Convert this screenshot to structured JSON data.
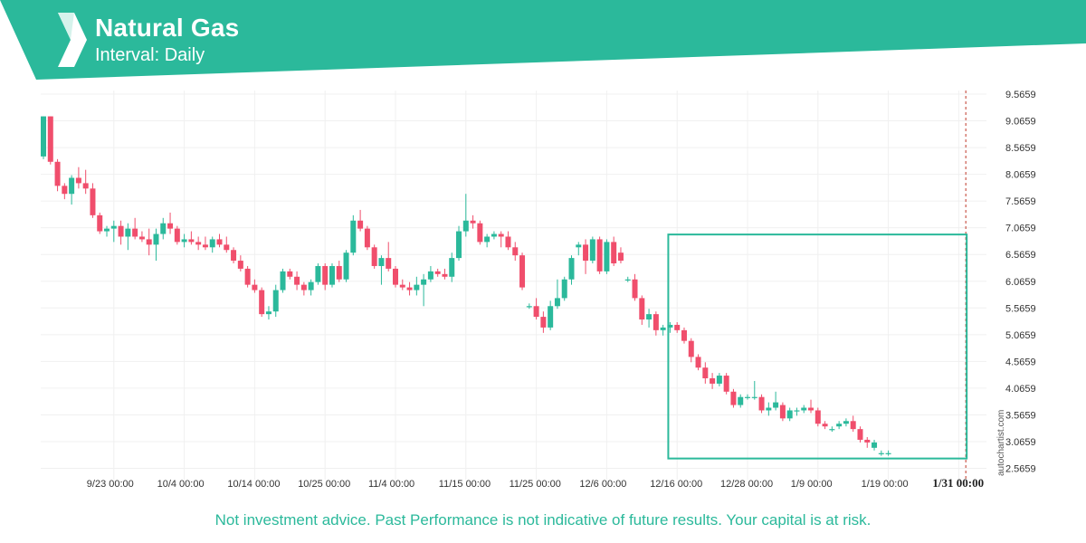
{
  "header": {
    "title": "Natural Gas",
    "subtitle": "Interval: Daily",
    "brand_color": "#2bb99b",
    "logo_icon": "autochartist-logo-icon"
  },
  "footer": {
    "disclaimer": "Not investment advice. Past Performance is not indicative of future results. Your capital is at risk."
  },
  "credit": "autochartist.com",
  "chart_data": {
    "type": "candlestick",
    "title": "Natural Gas",
    "interval": "Daily",
    "y_ticks": [
      "9.5659",
      "9.0659",
      "8.5659",
      "8.0659",
      "7.5659",
      "7.0659",
      "6.5659",
      "6.0659",
      "5.5659",
      "5.0659",
      "4.5659",
      "4.0659",
      "3.5659",
      "3.0659",
      "2.5659"
    ],
    "ylim": [
      2.5659,
      9.5659
    ],
    "x_ticks": [
      "9/23 00:00",
      "10/4 00:00",
      "10/14 00:00",
      "10/25 00:00",
      "11/4 00:00",
      "11/15 00:00",
      "11/25 00:00",
      "12/6 00:00",
      "12/16 00:00",
      "12/28 00:00",
      "1/9 00:00",
      "1/19 00:00",
      "1/31 00:00"
    ],
    "x_tick_bar_index": [
      10,
      20,
      30,
      40,
      50,
      60,
      70,
      80,
      90,
      100,
      110,
      120,
      130
    ],
    "grid": true,
    "colors": {
      "up": "#2bb99b",
      "down": "#f04e6c",
      "pattern": "#2bb99b",
      "axis_text": "#333333"
    },
    "pattern_box": {
      "start_bar": 89,
      "end_bar": 131,
      "top": 6.94,
      "bottom": 2.75
    },
    "marker_bar": 131,
    "ohlc": [
      [
        8.4,
        9.15,
        8.35,
        9.15
      ],
      [
        9.15,
        9.15,
        8.25,
        8.3
      ],
      [
        8.3,
        8.35,
        7.75,
        7.85
      ],
      [
        7.85,
        7.9,
        7.6,
        7.7
      ],
      [
        7.7,
        8.05,
        7.5,
        8.0
      ],
      [
        8.0,
        8.2,
        7.8,
        7.9
      ],
      [
        7.9,
        8.15,
        7.7,
        7.8
      ],
      [
        7.8,
        7.9,
        7.25,
        7.3
      ],
      [
        7.3,
        7.35,
        6.95,
        7.0
      ],
      [
        7.0,
        7.1,
        6.9,
        7.05
      ],
      [
        7.05,
        7.2,
        6.8,
        7.1
      ],
      [
        7.1,
        7.2,
        6.75,
        6.9
      ],
      [
        6.9,
        7.15,
        6.65,
        7.05
      ],
      [
        7.05,
        7.25,
        6.85,
        6.9
      ],
      [
        6.9,
        7.0,
        6.8,
        6.85
      ],
      [
        6.85,
        7.05,
        6.55,
        6.75
      ],
      [
        6.75,
        7.05,
        6.45,
        6.95
      ],
      [
        6.95,
        7.25,
        6.85,
        7.15
      ],
      [
        7.15,
        7.35,
        6.95,
        7.05
      ],
      [
        7.05,
        7.1,
        6.75,
        6.8
      ],
      [
        6.8,
        6.95,
        6.7,
        6.85
      ],
      [
        6.85,
        7.0,
        6.75,
        6.8
      ],
      [
        6.8,
        6.9,
        6.65,
        6.75
      ],
      [
        6.75,
        6.9,
        6.65,
        6.7
      ],
      [
        6.7,
        6.9,
        6.6,
        6.85
      ],
      [
        6.85,
        6.95,
        6.7,
        6.75
      ],
      [
        6.75,
        6.9,
        6.6,
        6.65
      ],
      [
        6.65,
        6.7,
        6.4,
        6.45
      ],
      [
        6.45,
        6.55,
        6.25,
        6.3
      ],
      [
        6.3,
        6.35,
        5.95,
        6.0
      ],
      [
        6.0,
        6.1,
        5.85,
        5.9
      ],
      [
        5.9,
        5.95,
        5.4,
        5.45
      ],
      [
        5.45,
        5.6,
        5.35,
        5.5
      ],
      [
        5.5,
        6.0,
        5.4,
        5.9
      ],
      [
        5.9,
        6.3,
        5.85,
        6.25
      ],
      [
        6.25,
        6.3,
        6.1,
        6.15
      ],
      [
        6.15,
        6.25,
        5.9,
        6.0
      ],
      [
        6.0,
        6.05,
        5.8,
        5.9
      ],
      [
        5.9,
        6.1,
        5.8,
        6.05
      ],
      [
        6.05,
        6.4,
        6.0,
        6.35
      ],
      [
        6.35,
        6.4,
        5.9,
        6.0
      ],
      [
        6.0,
        6.4,
        5.95,
        6.35
      ],
      [
        6.35,
        6.45,
        6.05,
        6.1
      ],
      [
        6.1,
        6.65,
        6.05,
        6.6
      ],
      [
        6.6,
        7.3,
        6.55,
        7.2
      ],
      [
        7.2,
        7.4,
        7.0,
        7.05
      ],
      [
        7.05,
        7.1,
        6.65,
        6.7
      ],
      [
        6.7,
        6.75,
        6.3,
        6.35
      ],
      [
        6.35,
        6.55,
        6.0,
        6.5
      ],
      [
        6.5,
        6.8,
        6.25,
        6.3
      ],
      [
        6.3,
        6.35,
        5.95,
        6.0
      ],
      [
        6.0,
        6.1,
        5.9,
        5.95
      ],
      [
        5.95,
        6.05,
        5.8,
        5.9
      ],
      [
        5.9,
        6.15,
        5.8,
        6.0
      ],
      [
        6.0,
        6.2,
        5.6,
        6.1
      ],
      [
        6.1,
        6.35,
        6.05,
        6.25
      ],
      [
        6.25,
        6.3,
        6.15,
        6.2
      ],
      [
        6.2,
        6.3,
        6.1,
        6.15
      ],
      [
        6.15,
        6.6,
        6.05,
        6.5
      ],
      [
        6.5,
        7.1,
        6.45,
        7.0
      ],
      [
        7.0,
        7.7,
        6.9,
        7.2
      ],
      [
        7.2,
        7.3,
        7.05,
        7.15
      ],
      [
        7.15,
        7.2,
        6.75,
        6.8
      ],
      [
        6.8,
        6.95,
        6.7,
        6.9
      ],
      [
        6.9,
        7.0,
        6.85,
        6.95
      ],
      [
        6.95,
        7.0,
        6.7,
        6.9
      ],
      [
        6.9,
        7.0,
        6.65,
        6.7
      ],
      [
        6.7,
        6.8,
        6.45,
        6.55
      ],
      [
        6.55,
        6.6,
        5.9,
        5.95
      ],
      [
        5.6,
        5.65,
        5.55,
        5.6
      ],
      [
        5.6,
        5.75,
        5.35,
        5.4
      ],
      [
        5.4,
        5.5,
        5.1,
        5.2
      ],
      [
        5.2,
        5.7,
        5.15,
        5.6
      ],
      [
        5.6,
        6.1,
        5.55,
        5.75
      ],
      [
        5.75,
        6.15,
        5.7,
        6.1
      ],
      [
        6.1,
        6.55,
        6.0,
        6.5
      ],
      [
        6.7,
        6.8,
        6.55,
        6.75
      ],
      [
        6.75,
        6.85,
        6.2,
        6.45
      ],
      [
        6.45,
        6.9,
        6.4,
        6.85
      ],
      [
        6.85,
        6.9,
        6.2,
        6.25
      ],
      [
        6.25,
        6.85,
        6.2,
        6.8
      ],
      [
        6.8,
        6.9,
        6.35,
        6.4
      ],
      [
        6.6,
        6.7,
        6.4,
        6.45
      ],
      [
        6.1,
        6.15,
        6.05,
        6.1
      ],
      [
        6.1,
        6.2,
        5.7,
        5.75
      ],
      [
        5.75,
        5.8,
        5.25,
        5.35
      ],
      [
        5.35,
        5.55,
        5.2,
        5.45
      ],
      [
        5.45,
        5.5,
        5.05,
        5.15
      ],
      [
        5.15,
        5.25,
        5.05,
        5.2
      ],
      [
        5.2,
        5.3,
        5.1,
        5.25
      ],
      [
        5.25,
        5.3,
        5.1,
        5.15
      ],
      [
        5.15,
        5.2,
        4.9,
        4.95
      ],
      [
        4.95,
        5.0,
        4.55,
        4.65
      ],
      [
        4.65,
        4.7,
        4.4,
        4.45
      ],
      [
        4.45,
        4.55,
        4.15,
        4.25
      ],
      [
        4.25,
        4.35,
        4.05,
        4.15
      ],
      [
        4.15,
        4.35,
        4.1,
        4.3
      ],
      [
        4.3,
        4.35,
        3.95,
        4.0
      ],
      [
        4.0,
        4.05,
        3.7,
        3.75
      ],
      [
        3.75,
        3.95,
        3.7,
        3.9
      ],
      [
        3.9,
        3.95,
        3.85,
        3.9
      ],
      [
        3.9,
        4.2,
        3.85,
        3.9
      ],
      [
        3.9,
        3.95,
        3.6,
        3.65
      ],
      [
        3.65,
        3.8,
        3.55,
        3.7
      ],
      [
        3.7,
        4.0,
        3.65,
        3.8
      ],
      [
        3.75,
        3.8,
        3.45,
        3.5
      ],
      [
        3.5,
        3.7,
        3.45,
        3.65
      ],
      [
        3.65,
        3.7,
        3.55,
        3.65
      ],
      [
        3.65,
        3.75,
        3.6,
        3.7
      ],
      [
        3.7,
        3.85,
        3.6,
        3.65
      ],
      [
        3.65,
        3.7,
        3.35,
        3.4
      ],
      [
        3.4,
        3.45,
        3.3,
        3.35
      ],
      [
        3.3,
        3.35,
        3.25,
        3.3
      ],
      [
        3.35,
        3.45,
        3.3,
        3.4
      ],
      [
        3.4,
        3.5,
        3.35,
        3.45
      ],
      [
        3.45,
        3.55,
        3.25,
        3.3
      ],
      [
        3.3,
        3.35,
        3.05,
        3.1
      ],
      [
        3.1,
        3.15,
        2.95,
        3.05
      ],
      [
        2.95,
        3.1,
        2.9,
        3.05
      ],
      [
        2.85,
        2.9,
        2.8,
        2.85
      ],
      [
        2.85,
        2.9,
        2.8,
        2.85
      ]
    ]
  }
}
